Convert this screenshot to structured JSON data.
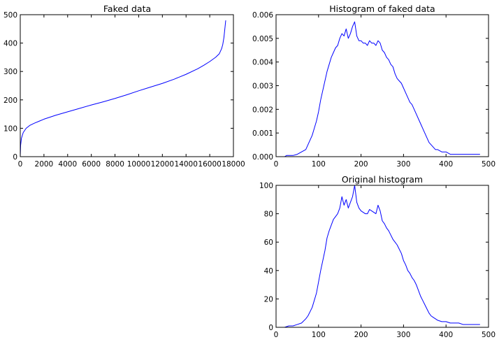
{
  "figure": {
    "background": "#ffffff",
    "line_color": "#0000ff"
  },
  "chart_data": [
    {
      "id": "faked",
      "type": "line",
      "title": "Faked data",
      "xlabel": "",
      "ylabel": "",
      "xlim": [
        0,
        18000
      ],
      "ylim": [
        0,
        500
      ],
      "xticks": [
        0,
        2000,
        4000,
        6000,
        8000,
        10000,
        12000,
        14000,
        16000,
        18000
      ],
      "yticks": [
        0,
        100,
        200,
        300,
        400,
        500
      ],
      "grid": false,
      "series": [
        {
          "x": [
            0,
            30,
            100,
            250,
            500,
            800,
            1200,
            1600,
            2000,
            3000,
            4000,
            5000,
            6000,
            7000,
            8000,
            9000,
            10000,
            11000,
            12000,
            13000,
            14000,
            15000,
            15500,
            16000,
            16500,
            16800,
            17000,
            17100,
            17200,
            17250,
            17300,
            17350
          ],
          "y": [
            2,
            40,
            65,
            85,
            100,
            110,
            118,
            125,
            132,
            146,
            158,
            170,
            182,
            193,
            205,
            218,
            232,
            245,
            258,
            273,
            290,
            310,
            322,
            335,
            350,
            362,
            380,
            395,
            420,
            440,
            460,
            480
          ]
        }
      ]
    },
    {
      "id": "hist-faked",
      "type": "line",
      "title": "Histogram of faked data",
      "xlabel": "",
      "ylabel": "",
      "xlim": [
        0,
        500
      ],
      "ylim": [
        0,
        0.006
      ],
      "xticks": [
        0,
        100,
        200,
        300,
        400,
        500
      ],
      "yticks": [
        0.0,
        0.001,
        0.002,
        0.003,
        0.004,
        0.005,
        0.006
      ],
      "ytick_labels": [
        "0.000",
        "0.001",
        "0.002",
        "0.003",
        "0.004",
        "0.005",
        "0.006"
      ],
      "grid": false,
      "series": [
        {
          "x": [
            10,
            20,
            25,
            30,
            40,
            50,
            60,
            70,
            75,
            80,
            85,
            90,
            95,
            100,
            105,
            110,
            115,
            120,
            125,
            130,
            135,
            140,
            145,
            150,
            155,
            160,
            165,
            170,
            175,
            180,
            185,
            190,
            195,
            200,
            205,
            210,
            215,
            220,
            225,
            230,
            235,
            240,
            245,
            250,
            255,
            260,
            265,
            270,
            275,
            280,
            285,
            290,
            295,
            300,
            305,
            310,
            315,
            320,
            325,
            330,
            335,
            340,
            345,
            350,
            355,
            360,
            365,
            370,
            375,
            380,
            390,
            400,
            410,
            420,
            430,
            440,
            450,
            460,
            470,
            480
          ],
          "y": [
            0.0,
            0.0,
            5e-05,
            5e-05,
            5e-05,
            0.0001,
            0.0002,
            0.0003,
            0.0005,
            0.0007,
            0.0009,
            0.0012,
            0.0015,
            0.0019,
            0.0024,
            0.0028,
            0.0032,
            0.0036,
            0.0039,
            0.0042,
            0.0044,
            0.0046,
            0.0047,
            0.005,
            0.0052,
            0.0051,
            0.0054,
            0.005,
            0.0052,
            0.0055,
            0.0057,
            0.0051,
            0.0049,
            0.0049,
            0.0048,
            0.0048,
            0.0047,
            0.0049,
            0.0048,
            0.0048,
            0.0047,
            0.0049,
            0.0048,
            0.0045,
            0.0044,
            0.0042,
            0.0041,
            0.0039,
            0.0038,
            0.0035,
            0.0033,
            0.0032,
            0.0031,
            0.0029,
            0.0027,
            0.0025,
            0.0023,
            0.0022,
            0.002,
            0.0018,
            0.0016,
            0.0014,
            0.0012,
            0.001,
            0.0008,
            0.0006,
            0.0005,
            0.0004,
            0.0003,
            0.0003,
            0.0002,
            0.0002,
            0.0001,
            0.0001,
            0.0001,
            0.0001,
            0.0001,
            0.0001,
            0.0001,
            0.0001
          ]
        }
      ]
    },
    {
      "id": "hist-original",
      "type": "line",
      "title": "Original histogram",
      "xlabel": "",
      "ylabel": "",
      "xlim": [
        0,
        500
      ],
      "ylim": [
        0,
        100
      ],
      "xticks": [
        0,
        100,
        200,
        300,
        400,
        500
      ],
      "yticks": [
        0,
        20,
        40,
        60,
        80,
        100
      ],
      "grid": false,
      "series": [
        {
          "x": [
            0,
            10,
            20,
            30,
            40,
            50,
            60,
            70,
            75,
            80,
            85,
            90,
            95,
            100,
            105,
            110,
            115,
            120,
            125,
            130,
            135,
            140,
            145,
            150,
            155,
            160,
            165,
            170,
            175,
            180,
            185,
            190,
            195,
            200,
            205,
            210,
            215,
            220,
            225,
            230,
            235,
            240,
            245,
            250,
            255,
            260,
            265,
            270,
            275,
            280,
            285,
            290,
            295,
            300,
            305,
            310,
            315,
            320,
            325,
            330,
            335,
            340,
            345,
            350,
            355,
            360,
            365,
            370,
            375,
            380,
            390,
            400,
            410,
            420,
            430,
            440,
            450,
            460,
            470,
            480
          ],
          "y": [
            0,
            0,
            0,
            1,
            1,
            2,
            3,
            6,
            8,
            11,
            14,
            19,
            24,
            32,
            40,
            47,
            54,
            63,
            68,
            72,
            76,
            78,
            80,
            84,
            92,
            86,
            90,
            84,
            88,
            92,
            100,
            88,
            84,
            82,
            81,
            80,
            80,
            83,
            82,
            81,
            80,
            86,
            82,
            75,
            73,
            70,
            68,
            65,
            62,
            60,
            58,
            55,
            52,
            47,
            44,
            40,
            38,
            35,
            33,
            30,
            26,
            22,
            19,
            16,
            13,
            10,
            8,
            7,
            6,
            5,
            4,
            4,
            3,
            3,
            3,
            2,
            2,
            2,
            2,
            2
          ]
        }
      ]
    }
  ]
}
